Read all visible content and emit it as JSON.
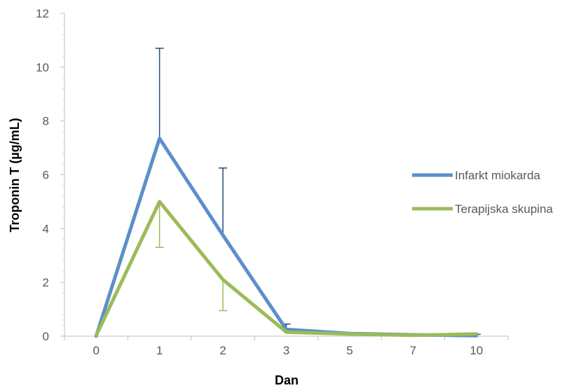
{
  "chart_data": {
    "type": "line",
    "title": "",
    "xlabel": "Dan",
    "ylabel": "Troponin T (µg/mL)",
    "categories": [
      "0",
      "1",
      "2",
      "3",
      "5",
      "7",
      "10"
    ],
    "ylim": [
      0,
      12
    ],
    "yticks": [
      "0",
      "2",
      "4",
      "6",
      "8",
      "10",
      "12"
    ],
    "grid": false,
    "legend_position": "right",
    "series": [
      {
        "name": "Infarkt miokarda",
        "color": "#5b8fc9",
        "error_color": "#2e4a7a",
        "error_direction": "up",
        "values": [
          0.0,
          7.35,
          3.75,
          0.25,
          0.1,
          0.05,
          0.02
        ],
        "errors": [
          0.0,
          3.35,
          2.5,
          0.2,
          0.0,
          0.0,
          0.05
        ]
      },
      {
        "name": "Terapijska skupina",
        "color": "#9bbb59",
        "error_color": "#9bbb59",
        "error_direction": "down",
        "values": [
          0.02,
          5.0,
          2.1,
          0.15,
          0.08,
          0.03,
          0.08
        ],
        "errors": [
          0.0,
          1.7,
          1.15,
          0.0,
          0.0,
          0.0,
          0.0
        ]
      }
    ]
  }
}
